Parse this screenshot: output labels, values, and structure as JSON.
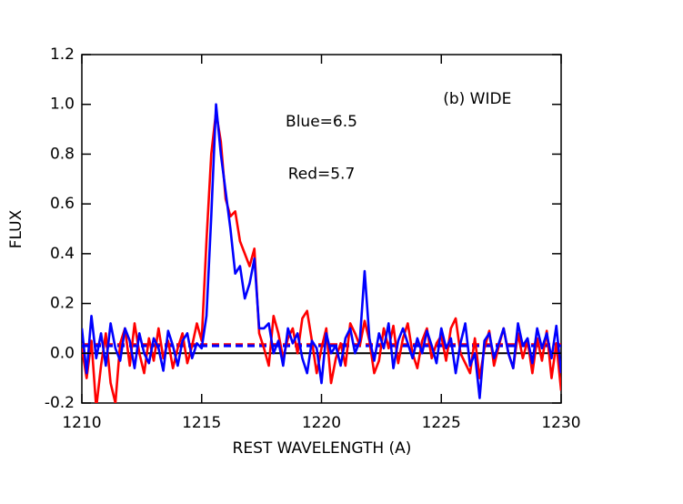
{
  "chart_data": {
    "type": "line",
    "xlabel": "REST WAVELENGTH (A)",
    "ylabel": "FLUX",
    "annotations": [
      {
        "text": "(b) WIDE",
        "x": 1226.5,
        "y": 1.02,
        "color": "#000000"
      },
      {
        "text": "Blue=6.5",
        "x": 1220,
        "y": 0.93,
        "color": "#0000ff"
      },
      {
        "text": "Red=5.7",
        "x": 1220,
        "y": 0.72,
        "color": "#ff0000"
      }
    ],
    "x": [
      1210,
      1210.2,
      1210.4,
      1210.6,
      1210.8,
      1211,
      1211.2,
      1211.4,
      1211.6,
      1211.8,
      1212,
      1212.2,
      1212.4,
      1212.6,
      1212.8,
      1213,
      1213.2,
      1213.4,
      1213.6,
      1213.8,
      1214,
      1214.2,
      1214.4,
      1214.6,
      1214.8,
      1215,
      1215.2,
      1215.4,
      1215.6,
      1215.8,
      1216,
      1216.2,
      1216.4,
      1216.6,
      1216.8,
      1217,
      1217.2,
      1217.4,
      1217.6,
      1217.8,
      1218,
      1218.2,
      1218.4,
      1218.6,
      1218.8,
      1219,
      1219.2,
      1219.4,
      1219.6,
      1219.8,
      1220,
      1220.2,
      1220.4,
      1220.6,
      1220.8,
      1221,
      1221.2,
      1221.4,
      1221.6,
      1221.8,
      1222,
      1222.2,
      1222.4,
      1222.6,
      1222.8,
      1223,
      1223.2,
      1223.4,
      1223.6,
      1223.8,
      1224,
      1224.2,
      1224.4,
      1224.6,
      1224.8,
      1225,
      1225.2,
      1225.4,
      1225.6,
      1225.8,
      1226,
      1226.2,
      1226.4,
      1226.6,
      1226.8,
      1227,
      1227.2,
      1227.4,
      1227.6,
      1227.8,
      1228,
      1228.2,
      1228.4,
      1228.6,
      1228.8,
      1229,
      1229.2,
      1229.4,
      1229.6,
      1229.8,
      1230
    ],
    "series": [
      {
        "color": "#ff0000",
        "values": [
          0.02,
          -0.1,
          0.05,
          -0.22,
          -0.05,
          0.08,
          -0.12,
          -0.2,
          0.04,
          0.1,
          -0.05,
          0.12,
          0.0,
          -0.08,
          0.06,
          -0.03,
          0.1,
          -0.02,
          0.05,
          -0.06,
          0.02,
          0.08,
          -0.04,
          0.03,
          0.12,
          0.05,
          0.45,
          0.8,
          0.97,
          0.85,
          0.62,
          0.55,
          0.57,
          0.45,
          0.4,
          0.35,
          0.42,
          0.08,
          0.02,
          -0.05,
          0.15,
          0.08,
          -0.02,
          0.06,
          0.1,
          0.0,
          0.14,
          0.17,
          0.05,
          -0.08,
          0.02,
          0.1,
          -0.12,
          -0.02,
          0.04,
          -0.05,
          0.12,
          0.08,
          0.03,
          0.13,
          0.05,
          -0.08,
          -0.03,
          0.1,
          0.02,
          0.11,
          -0.04,
          0.06,
          0.12,
          0.0,
          -0.06,
          0.05,
          0.1,
          -0.02,
          0.04,
          0.07,
          -0.03,
          0.1,
          0.14,
          0.0,
          -0.04,
          -0.08,
          0.06,
          -0.1,
          0.02,
          0.09,
          -0.05,
          0.03,
          0.1,
          0.0,
          -0.06,
          0.08,
          -0.02,
          0.05,
          -0.08,
          0.06,
          -0.03,
          0.09,
          -0.1,
          0.04,
          -0.15
        ]
      },
      {
        "color": "#0000ff",
        "values": [
          0.1,
          -0.08,
          0.15,
          -0.02,
          0.08,
          -0.05,
          0.12,
          0.02,
          -0.03,
          0.1,
          0.05,
          -0.06,
          0.08,
          0.0,
          -0.04,
          0.06,
          0.02,
          -0.07,
          0.09,
          0.03,
          -0.05,
          0.05,
          0.08,
          -0.02,
          0.04,
          0.02,
          0.15,
          0.55,
          1.0,
          0.8,
          0.65,
          0.5,
          0.32,
          0.35,
          0.22,
          0.28,
          0.38,
          0.1,
          0.1,
          0.12,
          0.0,
          0.05,
          -0.05,
          0.1,
          0.04,
          0.08,
          -0.02,
          -0.08,
          0.05,
          0.02,
          -0.12,
          0.08,
          0.0,
          0.03,
          -0.05,
          0.06,
          0.1,
          0.0,
          0.05,
          0.33,
          0.06,
          -0.03,
          0.08,
          0.02,
          0.12,
          -0.06,
          0.05,
          0.1,
          0.04,
          -0.02,
          0.06,
          0.0,
          0.09,
          0.03,
          -0.04,
          0.1,
          0.02,
          0.06,
          -0.08,
          0.04,
          0.12,
          -0.05,
          0.0,
          -0.18,
          0.05,
          0.08,
          -0.02,
          0.04,
          0.1,
          0.0,
          -0.06,
          0.12,
          0.03,
          0.06,
          -0.04,
          0.1,
          0.02,
          0.08,
          -0.02,
          0.11,
          -0.08
        ]
      }
    ],
    "reference_lines": [
      {
        "y": 0,
        "color": "#000000",
        "dashed": false
      },
      {
        "y": 0.035,
        "color": "#ff0000",
        "dashed": true
      },
      {
        "y": 0.03,
        "color": "#0000ff",
        "dashed": true
      }
    ],
    "xlim": [
      1210,
      1230
    ],
    "xticks": [
      1210,
      1215,
      1220,
      1225,
      1230
    ],
    "ylim": [
      -0.2,
      1.2
    ],
    "yticks": [
      -0.2,
      {
        "value": 0,
        "label": "0.0"
      },
      0.2,
      0.4,
      0.6,
      0.8,
      {
        "value": 1,
        "label": "1.0"
      },
      1.2
    ]
  }
}
